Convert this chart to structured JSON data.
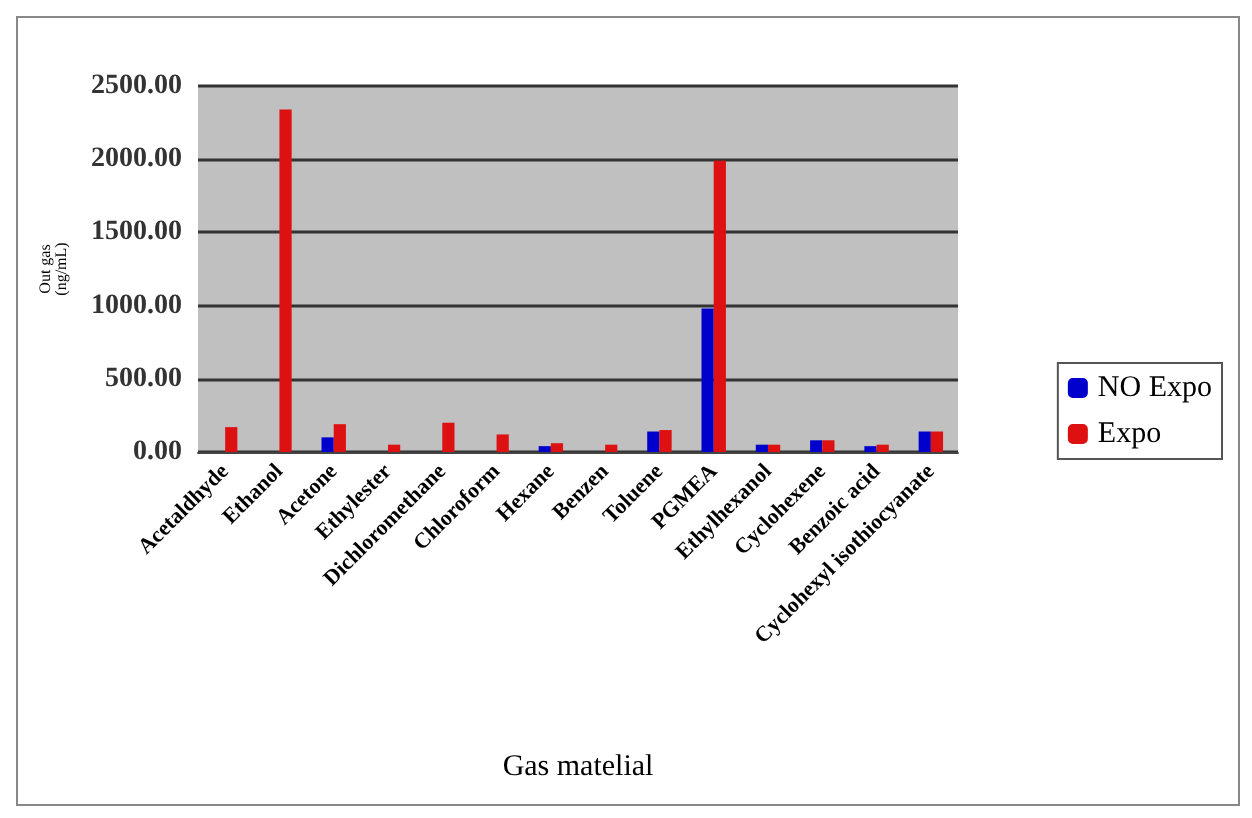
{
  "chart_data": {
    "type": "bar",
    "xlabel": "Gas matelial",
    "ylabel": "Out gas (ng/mL)",
    "categories": [
      "Acetaldhyde",
      "Ethanol",
      "Acetone",
      "Ethylester",
      "Dichloromethane",
      "Chloroform",
      "Hexane",
      "Benzen",
      "Toluene",
      "PGMEA",
      "Ethylhexanol",
      "Cyclohexene",
      "Benzoic acid",
      "Cyclohexyl isothiocyanate"
    ],
    "series": [
      {
        "name": "NO Expo",
        "color": "#0000cc",
        "values": [
          0,
          0,
          100,
          0,
          0,
          0,
          40,
          0,
          140,
          980,
          50,
          80,
          40,
          140
        ]
      },
      {
        "name": "Expo",
        "color": "#dd1111",
        "values": [
          170,
          2340,
          190,
          50,
          200,
          120,
          60,
          50,
          150,
          1990,
          50,
          80,
          50,
          140
        ]
      }
    ],
    "ylim": [
      0,
      2500
    ],
    "yticks": [
      {
        "value": 0,
        "label": "0.00"
      },
      {
        "value": 500,
        "label": "500.00"
      },
      {
        "value": 1000,
        "label": "1000.00"
      },
      {
        "value": 1500,
        "label": "1500.00"
      },
      {
        "value": 2000,
        "label": "2000.00"
      },
      {
        "value": 2500,
        "label": "2500.00"
      }
    ],
    "grid": "y",
    "legend": "right"
  }
}
